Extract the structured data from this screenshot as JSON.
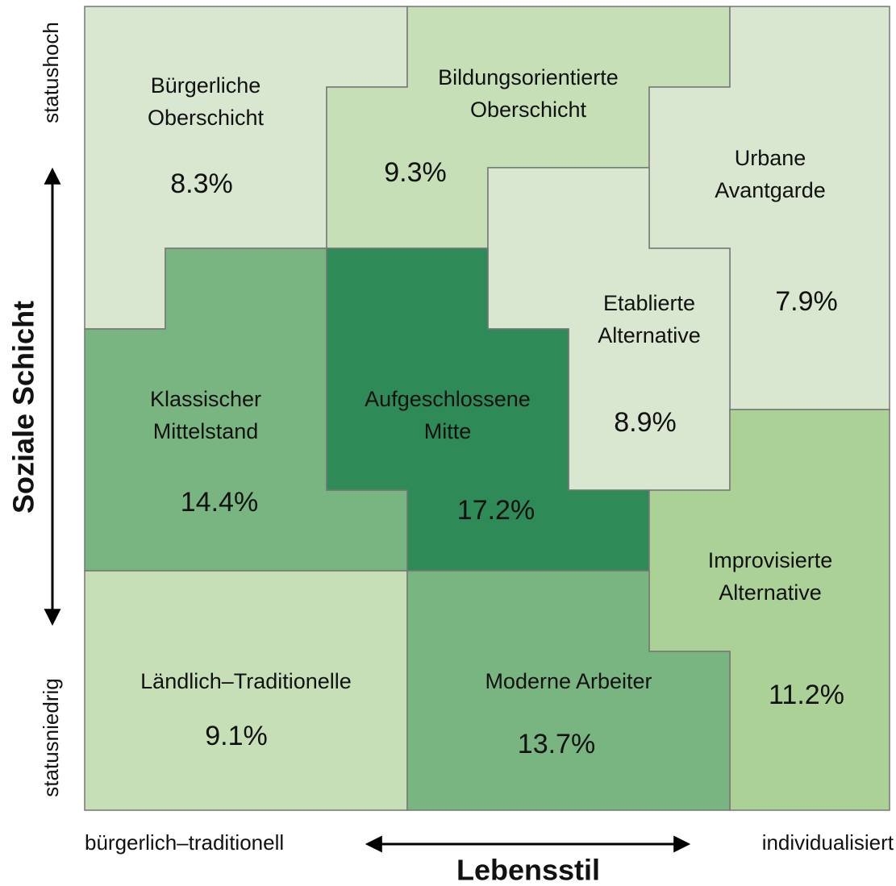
{
  "axes": {
    "y_title": "Soziale Schicht",
    "y_top": "statushoch",
    "y_bottom": "statusniedrig",
    "x_title": "Lebensstil",
    "x_left": "bürgerlich–traditionell",
    "x_right": "individualisiert"
  },
  "nodes": [
    {
      "label": [
        "Bürgerliche",
        "Oberschicht"
      ],
      "value": "8.3%"
    },
    {
      "label": [
        "Bildungsorientierte",
        "Oberschicht"
      ],
      "value": "9.3%"
    },
    {
      "label": [
        "Urbane",
        "Avantgarde"
      ],
      "value": "7.9%"
    },
    {
      "label": [
        "Etablierte",
        "Alternative"
      ],
      "value": "8.9%"
    },
    {
      "label": [
        "Klassischer",
        "Mittelstand"
      ],
      "value": "14.4%"
    },
    {
      "label": [
        "Aufgeschlossene",
        "Mitte"
      ],
      "value": "17.2%"
    },
    {
      "label": [
        "Improvisierte",
        "Alternative"
      ],
      "value": "11.2%"
    },
    {
      "label": [
        "Ländlich–Traditionelle"
      ],
      "value": "9.1%"
    },
    {
      "label": [
        "Moderne Arbeiter"
      ],
      "value": "13.7%"
    }
  ]
}
